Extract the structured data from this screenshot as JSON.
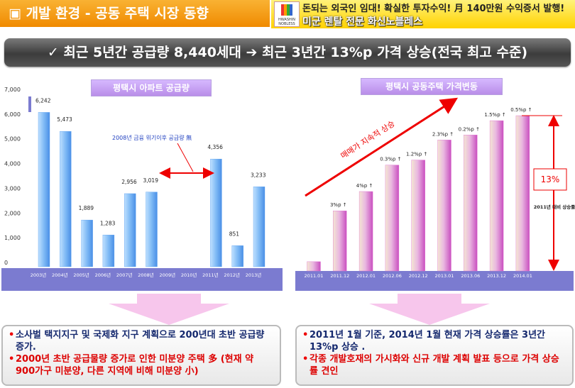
{
  "header": {
    "title": "▣ 개발 환경 - 공동 주택 시장 동향",
    "banner_top": "돈되는 외국인 임대! 확실한 투자수익! 月 140만원 수익증서 발행!",
    "banner_bottom": "미군 렌탈 전문 화신노블레스",
    "logo": "HWASHIN NOBLESS"
  },
  "headline": "✓ 최근 5년간 공급량 8,440세대 ➔ 최근 3년간 13%p 가격 상승(전국 최고 수준)",
  "chart_data": [
    {
      "type": "bar",
      "title": "평택시 아파트 공급량",
      "categories": [
        "2003년",
        "2004년",
        "2005년",
        "2006년",
        "2007년",
        "2008년",
        "2009년",
        "2010년",
        "2011년",
        "2012년",
        "2013년"
      ],
      "values": [
        6242,
        5473,
        1889,
        1283,
        2956,
        3019,
        null,
        null,
        4356,
        851,
        3233
      ],
      "value_labels": [
        "6,242",
        "5,473",
        "1,889",
        "1,283",
        "2,956",
        "3,019",
        null,
        null,
        "4,356",
        "851",
        "3,233"
      ],
      "color": "#5aa0f0",
      "ylim": [
        0,
        7000
      ],
      "yticks": [
        0,
        {
          "value": 1000,
          "label": "1,000"
        },
        {
          "value": 2000,
          "label": "2,000"
        },
        {
          "value": 3000,
          "label": "3,000"
        },
        {
          "value": 4000,
          "label": "4,000"
        },
        {
          "value": 5000,
          "label": "5,000"
        },
        {
          "value": 6000,
          "label": "6,000"
        },
        {
          "value": 7000,
          "label": "7,000"
        }
      ],
      "annotations": [
        "2008년 금융 위기이후 공급량 無"
      ]
    },
    {
      "type": "bar",
      "title": "평택시 공동주택 가격변동",
      "categories": [
        "2011.01",
        "2011.12",
        "2012.01",
        "2012.06",
        "2012.12",
        "2013.01",
        "2013.06",
        "2013.12",
        "2014.01"
      ],
      "values": [
        13,
        84,
        111,
        148,
        155,
        183,
        190,
        210,
        217
      ],
      "change_labels": [
        null,
        "3%p ↑",
        "4%p ↑",
        "0.3%p ↑",
        "1.2%p ↑",
        "2.3%p ↑",
        "0.2%p ↑",
        "1.5%p ↑",
        "0.5%p ↑"
      ],
      "color": "#e070d0",
      "ylim": [
        0,
        220
      ],
      "annotations": [
        "매매가 지속적 상승",
        "13%",
        "2011년 대비 상승률"
      ]
    }
  ],
  "notes": {
    "left": [
      "소사벌 택지지구 및 국제화 지구 계획으로 200년대 초반 공급량 증가.",
      "2000년  초반  공급물량 증가로 인한 미분양 주택 多 (현재 약 900가구 미분양, 다른 지역에 비해 미분양 小)"
    ],
    "right": [
      "2011년 1월 기준, 2014년 1월 현재 가격 상승률은 3년간 13%p 상승 .",
      "각종 개발호재의 가시화와 신규 개발 계획 발표 등으로 가격 상승률 견인"
    ]
  }
}
